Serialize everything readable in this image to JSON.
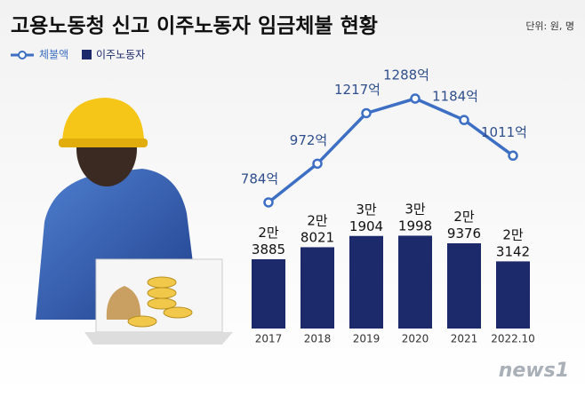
{
  "chart_data": {
    "type": "bar-line",
    "title": "고용노동청 신고 이주노동자 임금체불 현황",
    "unit_note": "단위: 원, 명",
    "source_logo": "news1",
    "categories": [
      "2017",
      "2018",
      "2019",
      "2020",
      "2021",
      "2022.10"
    ],
    "series": [
      {
        "name": "체불액",
        "type": "line",
        "axis": "y2",
        "color": "#3d6fc4",
        "values": [
          784,
          972,
          1217,
          1288,
          1184,
          1011
        ],
        "value_labels": [
          "784억",
          "972억",
          "1217억",
          "1288억",
          "1184억",
          "1011억"
        ]
      },
      {
        "name": "이주노동자",
        "type": "bar",
        "color": "#1c2a6b",
        "values": [
          23885,
          28021,
          31904,
          31998,
          29376,
          23142
        ],
        "value_labels": [
          "2만 3885",
          "2만 8021",
          "3만 1904",
          "3만 1998",
          "2만 9376",
          "2만 3142"
        ]
      }
    ],
    "ylim": [
      0,
      101000
    ],
    "y2lim": [
      172,
      1594
    ]
  }
}
